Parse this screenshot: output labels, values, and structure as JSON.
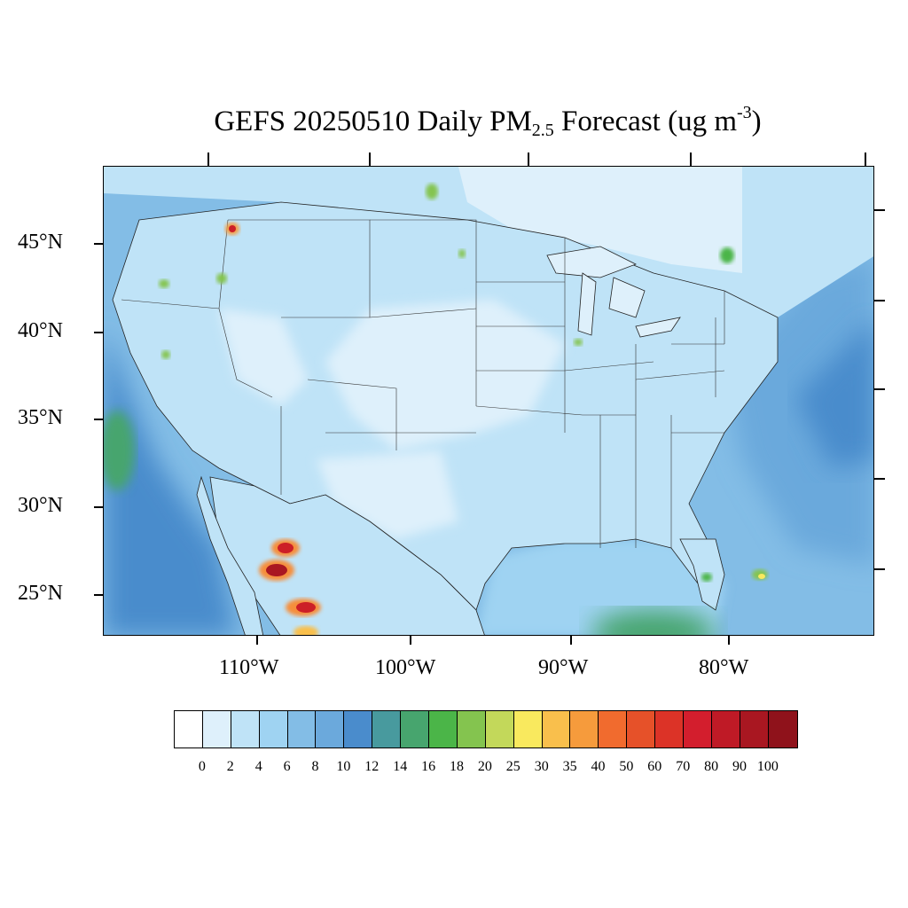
{
  "title": {
    "prefix": "GEFS 20250510 Daily PM",
    "pm_subscript": "2.5",
    "forecast_word": " Forecast (ug m",
    "unit_superscript": "-3",
    "suffix": ")"
  },
  "map": {
    "lat_labels": [
      "45°N",
      "40°N",
      "35°N",
      "30°N",
      "25°N"
    ],
    "lon_labels": [
      "110°W",
      "100°W",
      "90°W",
      "80°W"
    ],
    "field_colors": {
      "ocean_deep": "#4a8ccc",
      "ocean_mid": "#6ba9dc",
      "shelf": "#9fd3f2",
      "land_low": "#def0fb",
      "land_mid": "#bfe3f7",
      "smoke_green": "#4bb548",
      "smoke_orange": "#f68e3a",
      "smoke_red": "#cc1f27"
    }
  },
  "colorbar": {
    "colors": [
      "#ffffff",
      "#def0fb",
      "#bfe3f7",
      "#9fd3f2",
      "#83bde6",
      "#6ba9dc",
      "#4a8ccc",
      "#489a9e",
      "#47a56e",
      "#4bb548",
      "#84c44f",
      "#c3d85a",
      "#f9e95e",
      "#f9bf4c",
      "#f69b3c",
      "#f16b2e",
      "#e65129",
      "#dc3327",
      "#d31e2d",
      "#bf1a26",
      "#a91721",
      "#8f121b"
    ],
    "labels": [
      "0",
      "2",
      "4",
      "6",
      "8",
      "10",
      "12",
      "14",
      "16",
      "18",
      "20",
      "25",
      "30",
      "35",
      "40",
      "50",
      "60",
      "70",
      "80",
      "90",
      "100"
    ]
  }
}
